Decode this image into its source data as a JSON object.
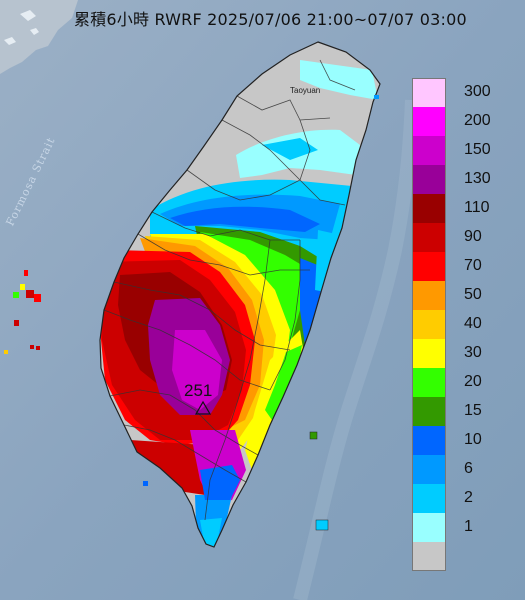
{
  "title": "累積6小時 RWRF 2025/07/06 21:00~07/07 03:00",
  "map": {
    "strait_label": "Formosa Strait",
    "city_label": "Taoyuan",
    "max_marker": {
      "value": "251",
      "icon": "triangle-max-marker-icon"
    }
  },
  "legend": {
    "items": [
      {
        "label": "300",
        "color": "#ffc6ff"
      },
      {
        "label": "200",
        "color": "#ff00ff"
      },
      {
        "label": "150",
        "color": "#cc00cc"
      },
      {
        "label": "130",
        "color": "#990099"
      },
      {
        "label": "110",
        "color": "#990000"
      },
      {
        "label": "90",
        "color": "#cc0000"
      },
      {
        "label": "70",
        "color": "#ff0000"
      },
      {
        "label": "50",
        "color": "#ff9900"
      },
      {
        "label": "40",
        "color": "#ffcc00"
      },
      {
        "label": "30",
        "color": "#ffff00"
      },
      {
        "label": "20",
        "color": "#33ff00"
      },
      {
        "label": "15",
        "color": "#339900"
      },
      {
        "label": "10",
        "color": "#0066ff"
      },
      {
        "label": "6",
        "color": "#0099ff"
      },
      {
        "label": "2",
        "color": "#00ccff"
      },
      {
        "label": "1",
        "color": "#99ffff"
      },
      {
        "label": "",
        "color": "#c7c7c7"
      }
    ]
  }
}
